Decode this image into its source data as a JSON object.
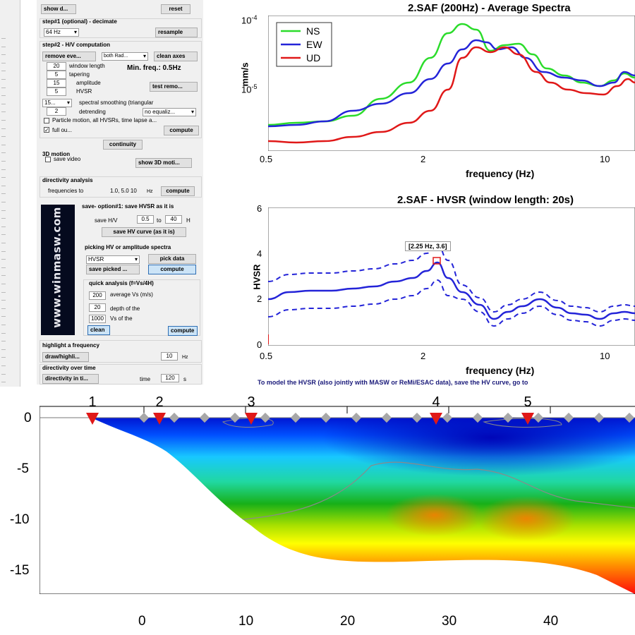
{
  "controls": {
    "show_btn": "show d...",
    "reset_btn": "reset",
    "step1_title": "step#1 (optional) - decimate",
    "decimate_value": "64 Hz",
    "resample_btn": "resample",
    "step2_title": "step#2 - H/V computation",
    "remove_events_btn": "remove eve...",
    "both_rad_value": "both Rad...",
    "clean_axes_btn": "clean axes",
    "window_length_value": "20",
    "window_length_label": "window length",
    "min_freq": "Min. freq.: 0.5Hz",
    "tapering_value": "5",
    "tapering_label": "tapering",
    "amplitude_value": "15",
    "amplitude_label": "amplitude",
    "test_remo_btn": "test remo...",
    "hvsr_value": "5",
    "hvsr_label": "HVSR",
    "smoothing_value": "15...",
    "smoothing_label": "spectral smoothing (triangular",
    "detrending_value": "2",
    "detrending_label": "detrending",
    "equaliz_value": "no equaliz...",
    "particle_motion_label": "Particle motion, all HVSRs, time lapse a...",
    "full_out_label": "full ou...",
    "compute_btn": "compute",
    "continuity_btn": "continuity",
    "motion3d_title": "3D motion",
    "save_video_label": "save video",
    "show3d_btn": "show 3D moti...",
    "directivity_title": "directivity analysis",
    "freq_to_label": "frequencies to",
    "freq_values": "1.0, 5.0 10",
    "hz_label": "Hz",
    "dir_compute_btn": "compute",
    "save_option_title": "save- option#1: save HVSR as it is",
    "save_hv_label": "save H/V",
    "save_from": "0.5",
    "to_label": "to",
    "save_to": "40",
    "h_label": "H",
    "save_hv_curve_btn": "save HV curve (as it is)",
    "picking_title": "picking HV or amplitude spectra",
    "picking_sel": "HVSR",
    "pick_data_btn": "pick data",
    "save_picked_btn": "save picked ...",
    "pick_compute_btn": "compute",
    "quick_title": "quick analysis (f=Vs/4H)",
    "avg_vs_value": "200",
    "avg_vs_label": "average Vs (m/s)",
    "depth_value": "20",
    "depth_label": "depth of the",
    "vs_of_value": "1000",
    "vs_of_label": "Vs of the",
    "clean_btn": "clean",
    "quick_compute_btn": "compute",
    "highlight_title": "highlight a frequency",
    "draw_btn": "draw/highli...",
    "highlight_value": "10",
    "highlight_unit": "Hz",
    "dir_time_title": "directivity over time",
    "dir_time_btn": "directivity in ti...",
    "time_label": "time",
    "time_value": "120",
    "s_label": "s",
    "logo_text": "www.winmasw.com"
  },
  "spectra": {
    "title": "2.SAF (200Hz) - Average Spectra",
    "ylabel": "mm/s",
    "xlabel": "frequency (Hz)",
    "ytick_top": "10",
    "ytick_top_exp": "-4",
    "ytick_mid": "10",
    "ytick_mid_exp": "-5",
    "xtick_1": "0.5",
    "xtick_2": "2",
    "xtick_3": "10",
    "legend_ns": "NS",
    "legend_ew": "EW",
    "legend_ud": "UD",
    "color_ns": "#2bdc2b",
    "color_ew": "#2424d8",
    "color_ud": "#e01818"
  },
  "hvsr": {
    "title": "2.SAF - HVSR (window length: 20s)",
    "ylabel": "HVSR",
    "xlabel": "frequency (Hz)",
    "peak_label": "[2.25 Hz, 3.6]",
    "ytick_0": "0",
    "ytick_2": "2",
    "ytick_4": "4",
    "ytick_6": "6",
    "xtick_1": "0.5",
    "xtick_2": "2",
    "xtick_3": "10",
    "color": "#2424d8"
  },
  "note": "To model the HVSR (also jointly with MASW or ReMi/ESAC data), save the HV curve, go to",
  "section": {
    "markers": [
      "1",
      "2",
      "3",
      "4",
      "5"
    ],
    "marker_color": "#e01818",
    "yticks": [
      "0",
      "-5",
      "-10",
      "-15"
    ],
    "xticks": [
      "0",
      "10",
      "20",
      "30",
      "40"
    ]
  }
}
